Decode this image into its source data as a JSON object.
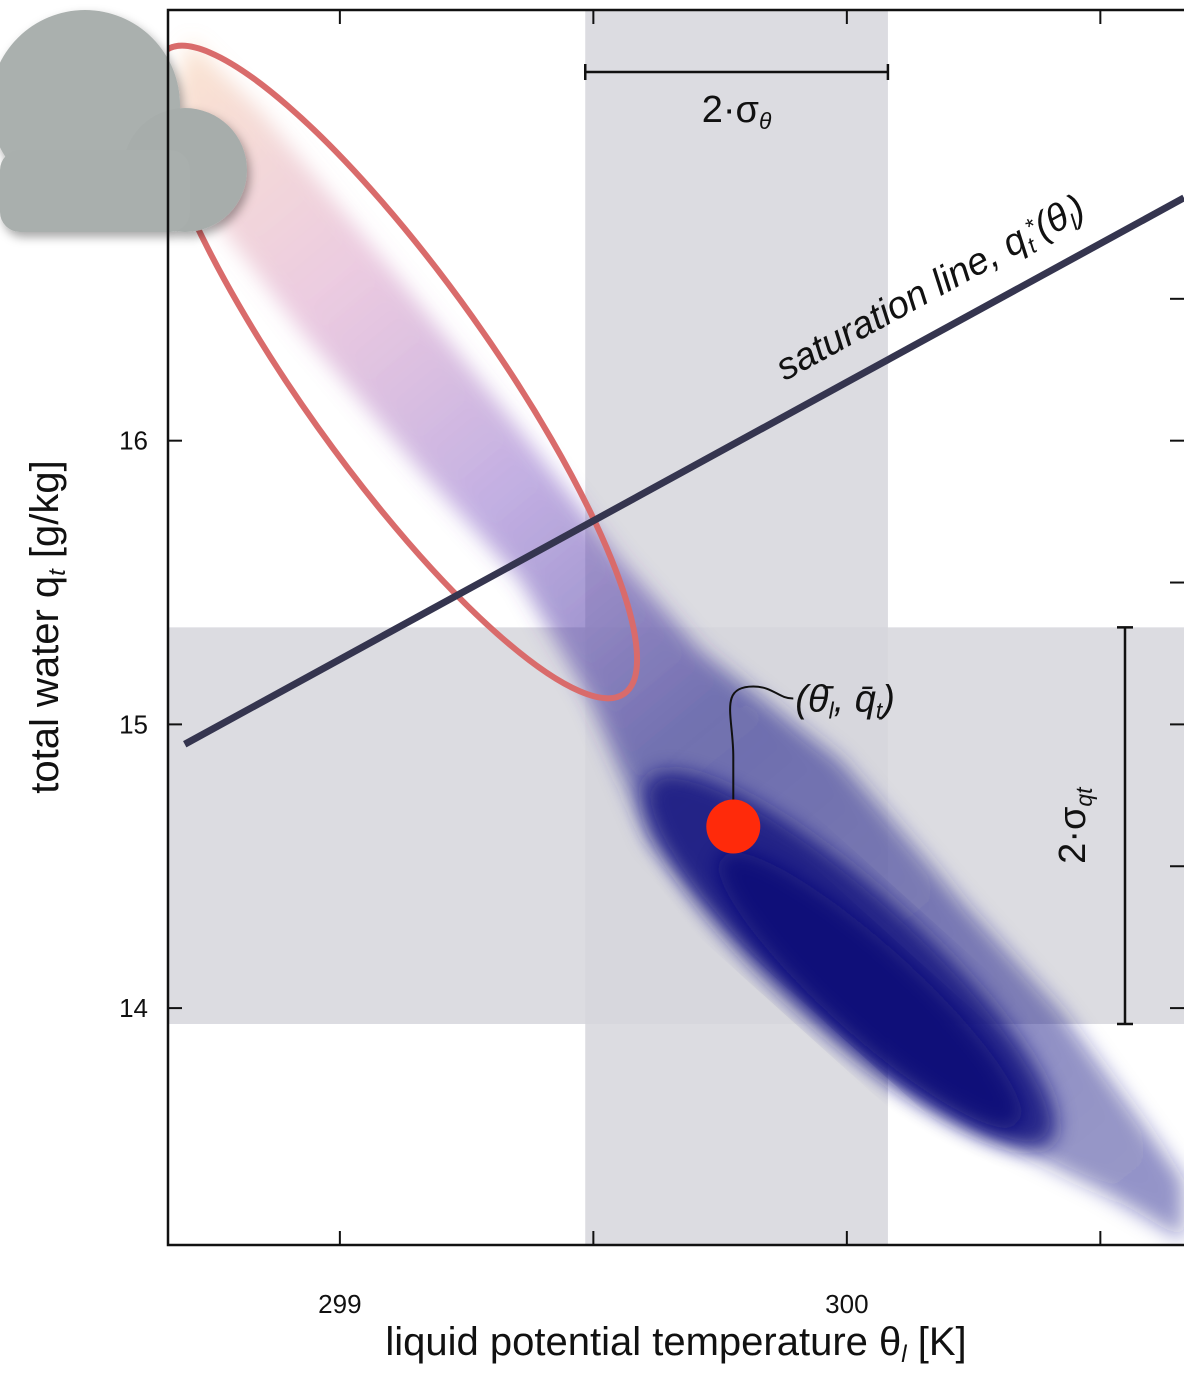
{
  "chart_data": {
    "type": "scatter",
    "xlabel": {
      "parts": [
        {
          "text": "liquid potential temperature θ",
          "style": "normal"
        },
        {
          "text": "l",
          "style": "sub"
        },
        {
          "text": "   [K]",
          "style": "normal"
        }
      ]
    },
    "ylabel": {
      "parts": [
        {
          "text": "total water q",
          "style": "normal"
        },
        {
          "text": "t",
          "style": "sub"
        },
        {
          "text": "   [g/kg]",
          "style": "normal"
        }
      ]
    },
    "xlim": [
      298.661,
      300.665
    ],
    "ylim": [
      13.165,
      17.518
    ],
    "xticks": [
      299,
      300
    ],
    "xminor": [
      299.5,
      300.5
    ],
    "yticks": [
      14,
      15,
      16
    ],
    "yminor": [
      14.5,
      15.5,
      16.5
    ],
    "bands": {
      "x": [
        299.484,
        300.081
      ],
      "y": [
        13.944,
        15.342
      ],
      "color": "#d6d6dc"
    },
    "mean": {
      "x": 299.776,
      "y": 14.64,
      "color": "#ff2a0a",
      "label": {
        "parts": [
          {
            "text": "(θ̄",
            "style": "normal"
          },
          {
            "text": "l",
            "style": "sub"
          },
          {
            "text": ", q̄",
            "style": "normal"
          },
          {
            "text": "t",
            "style": "sub"
          },
          {
            "text": ")",
            "style": "normal"
          }
        ]
      }
    },
    "saturation_line": {
      "x": [
        298.694,
        300.665
      ],
      "y": [
        14.93,
        16.856
      ],
      "color": "#35354f",
      "label": {
        "parts": [
          {
            "text": "saturation line, q",
            "style": "normal"
          },
          {
            "text": "t",
            "style": "sub"
          },
          {
            "text": "*",
            "style": "super"
          },
          {
            "text": "(θ",
            "style": "normal"
          },
          {
            "text": "l",
            "style": "sub"
          },
          {
            "text": ")",
            "style": "normal"
          }
        ]
      }
    },
    "sigma_theta": {
      "parts": [
        {
          "text": "2·σ",
          "style": "normal"
        },
        {
          "text": "θ",
          "style": "sub"
        }
      ]
    },
    "sigma_q": {
      "parts": [
        {
          "text": "2·σ",
          "style": "normal"
        },
        {
          "text": "q",
          "style": "sub"
        },
        {
          "text": "t",
          "style": "sub"
        }
      ]
    }
  }
}
